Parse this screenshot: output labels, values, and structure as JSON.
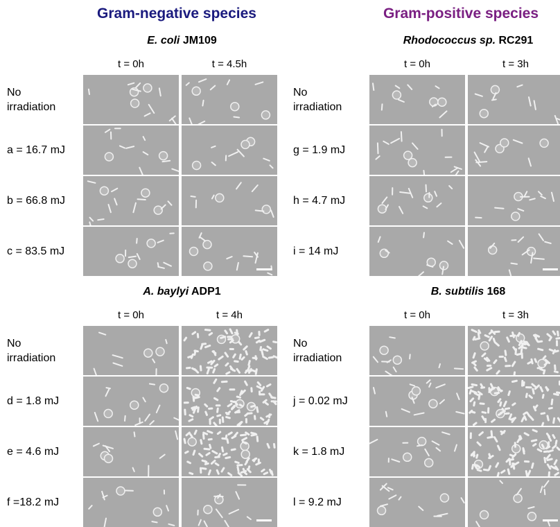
{
  "headers": {
    "gram_negative": "Gram-negative species",
    "gram_positive": "Gram-positive species"
  },
  "panels": [
    {
      "id": "ecoli",
      "title_italic": "E. coli",
      "title_rest": " JM109",
      "time_labels": [
        "t = 0h",
        "t = 4.5h"
      ],
      "rows": [
        "No\nirradiation",
        "a = 16.7 mJ",
        "b = 66.8 mJ",
        "c = 83.5 mJ"
      ]
    },
    {
      "id": "rhodo",
      "title_italic": "Rhodococcus sp.",
      "title_rest": " RC291",
      "time_labels": [
        "t = 0h",
        "t = 3h"
      ],
      "rows": [
        "No\nirradiation",
        "g = 1.9 mJ",
        "h = 4.7 mJ",
        "i = 14 mJ"
      ]
    },
    {
      "id": "acin",
      "title_italic": "A. baylyi",
      "title_rest": " ADP1",
      "time_labels": [
        "t = 0h",
        "t = 4h"
      ],
      "rows": [
        "No\nirradiation",
        "d = 1.8 mJ",
        "e = 4.6 mJ",
        "f =18.2 mJ"
      ]
    },
    {
      "id": "bsub",
      "title_italic": "B. subtilis",
      "title_rest": " 168",
      "time_labels": [
        "t = 0h",
        "t = 3h"
      ],
      "rows": [
        "No\nirradiation",
        "j = 0.02 mJ",
        "k = 1.8 mJ",
        "l = 9.2 mJ"
      ]
    }
  ],
  "colors": {
    "gram_negative": "#1a1a7e",
    "gram_positive": "#7a1f82",
    "micrograph_background": "#a9a9a9"
  }
}
